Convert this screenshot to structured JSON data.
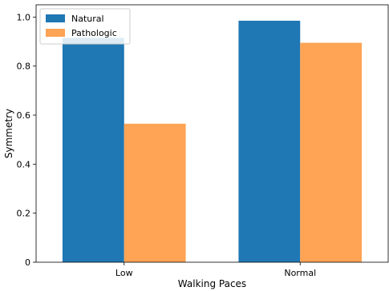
{
  "chart_data": {
    "type": "bar",
    "categories": [
      "Low",
      "Normal"
    ],
    "series": [
      {
        "name": "Natural",
        "values": [
          0.915,
          0.985
        ],
        "color": "#1f77b4"
      },
      {
        "name": "Pathologic",
        "values": [
          0.565,
          0.895
        ],
        "color": "#ffa354"
      }
    ],
    "title": "",
    "xlabel": "Walking Paces",
    "ylabel": "Symmetry",
    "ylim": [
      0,
      1.05
    ],
    "yticks": [
      0,
      0.2,
      0.4,
      0.6,
      0.8,
      1.0
    ],
    "ytick_labels": [
      "0",
      "0.2",
      "0.4",
      "0.6",
      "0.8",
      "1.0"
    ],
    "grid": false,
    "legend_position": "top-left"
  }
}
